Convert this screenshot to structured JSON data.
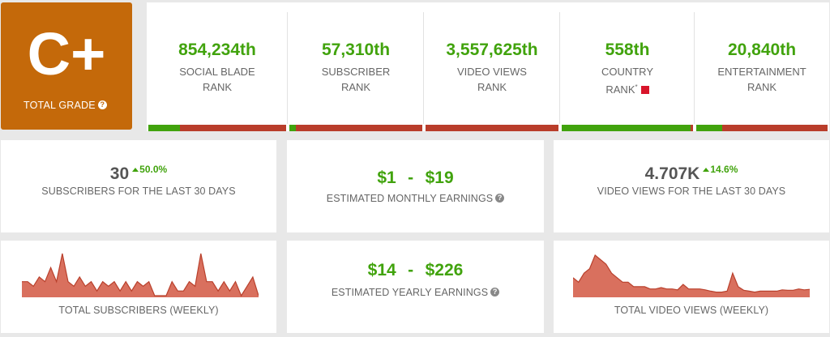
{
  "grade": {
    "letter": "C+",
    "label": "TOTAL GRADE",
    "help": "?"
  },
  "ranks": [
    {
      "value": "854,234th",
      "line1": "SOCIAL BLADE",
      "line2": "RANK",
      "fill": 0.23
    },
    {
      "value": "57,310th",
      "line1": "SUBSCRIBER",
      "line2": "RANK",
      "fill": 0.05
    },
    {
      "value": "3,557,625th",
      "line1": "VIDEO VIEWS",
      "line2": "RANK",
      "fill": 0.0
    },
    {
      "value": "558th",
      "line1": "COUNTRY",
      "line2": "RANK",
      "marker": "*",
      "fill": 0.98
    },
    {
      "value": "20,840th",
      "line1": "ENTERTAINMENT",
      "line2": "RANK",
      "fill": 0.2
    }
  ],
  "subscribers30": {
    "value": "30",
    "change": "50.0%",
    "label": "SUBSCRIBERS FOR THE LAST 30 DAYS"
  },
  "monthly": {
    "low": "$1",
    "dash": "-",
    "high": "$19",
    "label": "ESTIMATED MONTHLY EARNINGS",
    "help": "?"
  },
  "views30": {
    "value": "4.707K",
    "change": "14.6%",
    "label": "VIDEO VIEWS FOR THE LAST 30 DAYS"
  },
  "yearly": {
    "low": "$14",
    "dash": "-",
    "high": "$226",
    "label": "ESTIMATED YEARLY EARNINGS",
    "help": "?"
  },
  "subsChart": {
    "label": "TOTAL SUBSCRIBERS (WEEKLY)",
    "values": [
      3,
      3,
      2,
      4,
      3,
      6,
      3,
      9,
      3,
      2,
      4,
      2,
      3,
      1,
      3,
      2,
      3,
      1,
      3,
      1,
      3,
      2,
      3,
      0,
      0,
      0,
      3,
      1,
      1,
      3,
      2,
      9,
      3,
      3,
      1,
      3,
      1,
      3,
      0,
      2,
      4,
      0
    ],
    "color": "#d9705e",
    "stroke": "#b9402c"
  },
  "viewsChart": {
    "label": "TOTAL VIDEO VIEWS (WEEKLY)",
    "values": [
      4,
      3,
      5,
      6,
      9,
      8,
      7,
      5,
      4,
      3,
      3,
      2,
      2,
      2,
      1.5,
      1.5,
      1.8,
      1.5,
      1.5,
      1.3,
      2.5,
      1.5,
      1.5,
      1.5,
      1.3,
      1,
      0.8,
      0.8,
      1,
      5,
      2,
      1.2,
      1,
      0.8,
      1,
      1,
      1,
      1,
      1.3,
      1.2,
      1.2,
      1.5,
      1.3,
      1.4
    ],
    "color": "#d9705e",
    "stroke": "#b9402c"
  }
}
